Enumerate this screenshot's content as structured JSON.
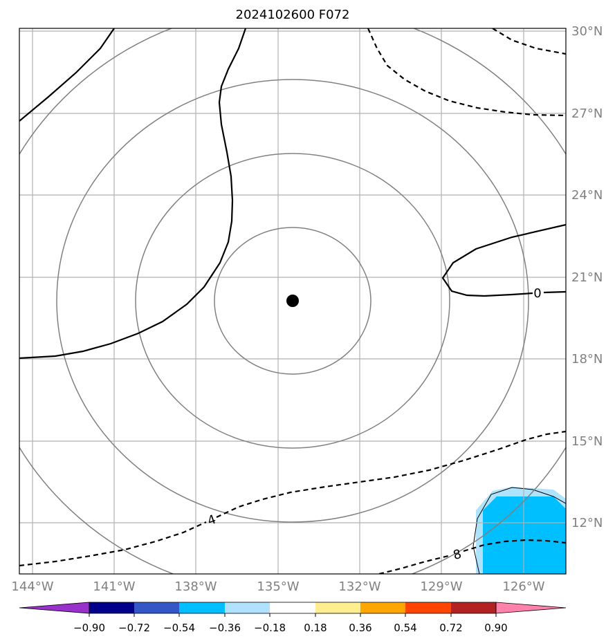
{
  "title": "2024102600 F072",
  "map": {
    "lon_labels": [
      "144°W",
      "141°W",
      "138°W",
      "135°W",
      "132°W",
      "129°W",
      "126°W"
    ],
    "lat_labels": [
      "30°N",
      "27°N",
      "24°N",
      "21°N",
      "18°N",
      "15°N",
      "12°N"
    ],
    "center_marker": "storm-center-dot",
    "range_rings": 4,
    "contour_labels": [
      "0",
      "4",
      "8"
    ],
    "colors": {
      "gridline": "#b0b0b0",
      "range_ring": "#808080",
      "contour": "#000000",
      "tick_label": "#808080",
      "shade_light": "#aee3fb",
      "shade_dark": "#00bfff"
    }
  },
  "colorbar": {
    "labels": [
      "−0.90",
      "−0.72",
      "−0.54",
      "−0.36",
      "−0.18",
      "0.18",
      "0.36",
      "0.54",
      "0.72",
      "0.90"
    ],
    "colors": [
      "#9932cc",
      "#00008b",
      "#3357c7",
      "#00bfff",
      "#b0e2ff",
      "#ffffff",
      "#ffee8f",
      "#ffa500",
      "#ff4500",
      "#b22222",
      "#ff82ab"
    ]
  }
}
